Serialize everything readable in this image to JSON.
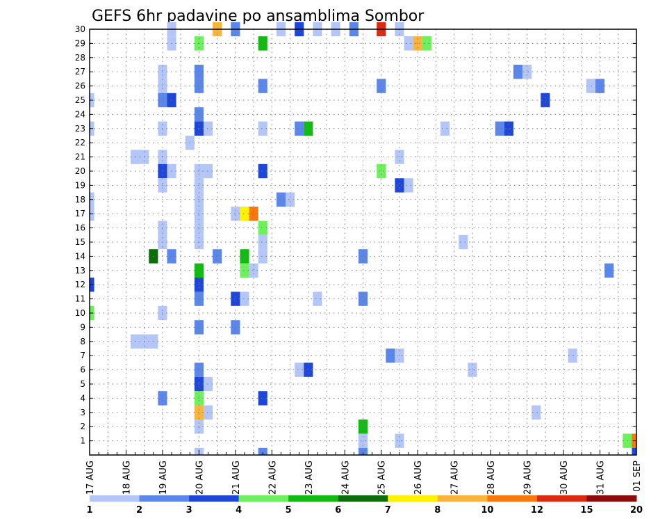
{
  "chart_data": {
    "type": "heatmap",
    "title": "GEFS 6hr padavine po ansamblima Sombor",
    "xlabel": "",
    "ylabel": "",
    "x_tick_labels": [
      "17 AUG",
      "18 AUG",
      "19 AUG",
      "20 AUG",
      "21 AUG",
      "22 AUG",
      "23 AUG",
      "24 AUG",
      "25 AUG",
      "26 AUG",
      "27 AUG",
      "28 AUG",
      "29 AUG",
      "30 AUG",
      "31 AUG",
      "01 SEP"
    ],
    "xlim_hours": [
      0,
      360
    ],
    "time_step_hours": 6,
    "y_ticks": [
      1,
      2,
      3,
      4,
      5,
      6,
      7,
      8,
      9,
      10,
      11,
      12,
      13,
      14,
      15,
      16,
      17,
      18,
      19,
      20,
      21,
      22,
      23,
      24,
      25,
      26,
      27,
      28,
      29,
      30
    ],
    "ylim": [
      0,
      30
    ],
    "grid": true,
    "legend_position": "bottom",
    "colorbar": {
      "labels": [
        "1",
        "2",
        "3",
        "4",
        "5",
        "6",
        "7",
        "8",
        "10",
        "12",
        "15",
        "20"
      ],
      "colors": [
        "#b3c6f7",
        "#5b86ea",
        "#1e46d8",
        "#6ef05e",
        "#12bb12",
        "#0b6e0b",
        "#fff200",
        "#fbb43b",
        "#f8780c",
        "#da2a10",
        "#8e0b0b"
      ]
    },
    "cells": [
      {
        "member": 30,
        "hour": 54,
        "level": 1
      },
      {
        "member": 30,
        "hour": 54,
        "level": 1
      },
      {
        "member": 29,
        "hour": 0,
        "level": 0
      }
    ]
  }
}
